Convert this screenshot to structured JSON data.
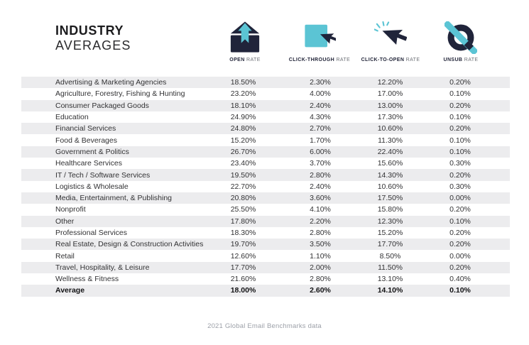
{
  "title": {
    "line1": "INDUSTRY",
    "line2": "AVERAGES"
  },
  "header": {
    "columns": [
      {
        "bold": "OPEN",
        "light": "RATE",
        "icon": "open-rate-envelope-icon"
      },
      {
        "bold": "CLICK-THROUGH",
        "light": "RATE",
        "icon": "click-through-cursor-icon"
      },
      {
        "bold": "CLICK-TO-OPEN",
        "light": "RATE",
        "icon": "click-to-open-cursor-icon"
      },
      {
        "bold": "UNSUB",
        "light": "RATE",
        "icon": "unsub-circle-slash-icon"
      }
    ]
  },
  "chart_data": {
    "type": "table",
    "title": "INDUSTRY AVERAGES",
    "columns": [
      "Industry",
      "Open Rate",
      "Click-Through Rate",
      "Click-To-Open Rate",
      "Unsub Rate"
    ],
    "rows": [
      [
        "Advertising & Marketing Agencies",
        "18.50%",
        "2.30%",
        "12.20%",
        "0.20%"
      ],
      [
        "Agriculture, Forestry, Fishing & Hunting",
        "23.20%",
        "4.00%",
        "17.00%",
        "0.10%"
      ],
      [
        "Consumer Packaged Goods",
        "18.10%",
        "2.40%",
        "13.00%",
        "0.20%"
      ],
      [
        "Education",
        "24.90%",
        "4.30%",
        "17.30%",
        "0.10%"
      ],
      [
        "Financial Services",
        "24.80%",
        "2.70%",
        "10.60%",
        "0.20%"
      ],
      [
        "Food & Beverages",
        "15.20%",
        "1.70%",
        "11.30%",
        "0.10%"
      ],
      [
        "Government & Politics",
        "26.70%",
        "6.00%",
        "22.40%",
        "0.10%"
      ],
      [
        "Healthcare Services",
        "23.40%",
        "3.70%",
        "15.60%",
        "0.30%"
      ],
      [
        "IT / Tech / Software Services",
        "19.50%",
        "2.80%",
        "14.30%",
        "0.20%"
      ],
      [
        "Logistics & Wholesale",
        "22.70%",
        "2.40%",
        "10.60%",
        "0.30%"
      ],
      [
        "Media, Entertainment, & Publishing",
        "20.80%",
        "3.60%",
        "17.50%",
        "0.00%"
      ],
      [
        "Nonprofit",
        "25.50%",
        "4.10%",
        "15.80%",
        "0.20%"
      ],
      [
        "Other",
        "17.80%",
        "2.20%",
        "12.30%",
        "0.10%"
      ],
      [
        "Professional Services",
        "18.30%",
        "2.80%",
        "15.20%",
        "0.20%"
      ],
      [
        "Real Estate, Design & Construction Activities",
        "19.70%",
        "3.50%",
        "17.70%",
        "0.20%"
      ],
      [
        "Retail",
        "12.60%",
        "1.10%",
        "8.50%",
        "0.00%"
      ],
      [
        "Travel, Hospitality, & Leisure",
        "17.70%",
        "2.00%",
        "11.50%",
        "0.20%"
      ],
      [
        "Wellness & Fitness",
        "21.60%",
        "2.80%",
        "13.10%",
        "0.40%"
      ]
    ],
    "average_row": [
      "Average",
      "18.00%",
      "2.60%",
      "14.10%",
      "0.10%"
    ],
    "layout": {
      "zebra_striping": true,
      "first_row_shaded": true,
      "average_row_bold": true
    }
  },
  "footer": {
    "caption": "2021 Global Email Benchmarks data"
  },
  "colors": {
    "teal": "#5BC4D4",
    "navy": "#20243A",
    "row_alt": "#ECECEE",
    "footer_gray": "#9DA1A9"
  }
}
